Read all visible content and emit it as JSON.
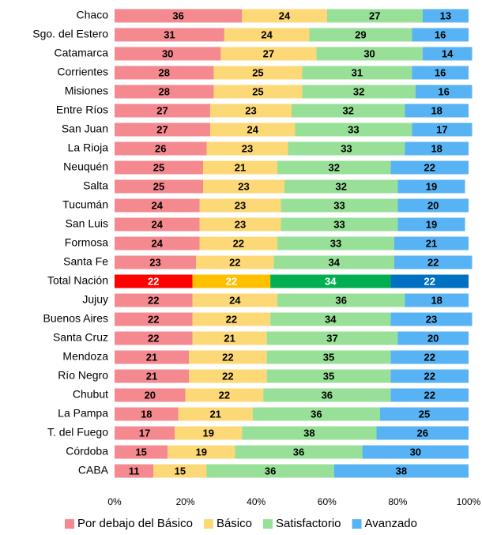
{
  "chart_data": {
    "type": "stacked-bar-horizontal",
    "categories": [
      "Chaco",
      "Sgo. del Estero",
      "Catamarca",
      "Corrientes",
      "Misiones",
      "Entre Ríos",
      "San Juan",
      "La Rioja",
      "Neuquén",
      "Salta",
      "Tucumán",
      "San Luis",
      "Formosa",
      "Santa Fe",
      "Total Nación",
      "Jujuy",
      "Buenos Aires",
      "Santa Cruz",
      "Mendoza",
      "Río Negro",
      "Chubut",
      "La Pampa",
      "T. del Fuego",
      "Córdoba",
      "CABA"
    ],
    "series": [
      {
        "name": "Por debajo del Básico",
        "color": "#f4898f",
        "highlight_color": "#ff0000",
        "values": [
          36,
          31,
          30,
          28,
          28,
          27,
          27,
          26,
          25,
          25,
          24,
          24,
          24,
          23,
          22,
          22,
          22,
          22,
          21,
          21,
          20,
          18,
          17,
          15,
          11
        ]
      },
      {
        "name": "Básico",
        "color": "#fcd876",
        "highlight_color": "#ffc000",
        "values": [
          24,
          24,
          27,
          25,
          25,
          23,
          24,
          23,
          21,
          23,
          23,
          23,
          22,
          22,
          22,
          24,
          22,
          21,
          22,
          22,
          22,
          21,
          19,
          19,
          15
        ]
      },
      {
        "name": "Satisfactorio",
        "color": "#98df98",
        "highlight_color": "#00b050",
        "values": [
          27,
          29,
          30,
          31,
          32,
          32,
          33,
          33,
          32,
          32,
          33,
          33,
          33,
          34,
          34,
          36,
          34,
          37,
          35,
          35,
          36,
          36,
          38,
          36,
          36
        ]
      },
      {
        "name": "Avanzado",
        "color": "#58b3f5",
        "highlight_color": "#0070c0",
        "values": [
          13,
          16,
          14,
          16,
          16,
          18,
          17,
          18,
          22,
          19,
          20,
          19,
          21,
          22,
          22,
          18,
          23,
          20,
          22,
          22,
          22,
          25,
          26,
          30,
          38
        ]
      }
    ],
    "highlight": "Total Nación",
    "xlim": [
      0,
      100
    ],
    "xticks": [
      {
        "value": 0,
        "label": "0%"
      },
      {
        "value": 20,
        "label": "20%"
      },
      {
        "value": 40,
        "label": "40%"
      },
      {
        "value": 60,
        "label": "60%"
      },
      {
        "value": 80,
        "label": "80%"
      },
      {
        "value": 100,
        "label": "100%"
      }
    ],
    "legend": "bottom"
  }
}
